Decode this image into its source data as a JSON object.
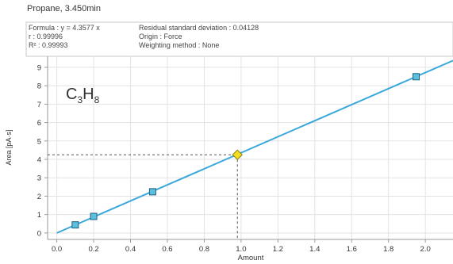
{
  "chart_data": {
    "type": "scatter",
    "title": "Propane, 3.450min",
    "compound_label": {
      "main": "C",
      "sub1": "3",
      "mid": "H",
      "sub2": "8"
    },
    "info": {
      "formula": "Formula : y = 4.3577 x",
      "r": "r : 0.99996",
      "r2": "R² : 0.99993",
      "residual": "Residual standard deviation : 0.04128",
      "origin": "Origin : Force",
      "weighting": "Weighting method : None"
    },
    "xlabel": "Amount",
    "ylabel": "Area [pA·s]",
    "xlim": [
      -0.05,
      2.15
    ],
    "ylim": [
      -0.35,
      9.6
    ],
    "xticks": [
      "0.0",
      "0.2",
      "0.4",
      "0.6",
      "0.8",
      "1.0",
      "1.2",
      "1.4",
      "1.6",
      "1.8",
      "2.0"
    ],
    "xtick_values": [
      0,
      0.2,
      0.4,
      0.6,
      0.8,
      1.0,
      1.2,
      1.4,
      1.6,
      1.8,
      2.0
    ],
    "yticks": [
      "0",
      "1",
      "2",
      "3",
      "4",
      "5",
      "6",
      "7",
      "8",
      "9"
    ],
    "ytick_values": [
      0,
      1,
      2,
      3,
      4,
      5,
      6,
      7,
      8,
      9
    ],
    "slope": 4.3577,
    "calibration_points": [
      {
        "x": 0.1,
        "y": 0.44
      },
      {
        "x": 0.2,
        "y": 0.9
      },
      {
        "x": 0.52,
        "y": 2.24
      },
      {
        "x": 1.95,
        "y": 8.49
      }
    ],
    "sample_point": {
      "x": 0.98,
      "y": 4.25
    },
    "colors": {
      "line": "#3ba8dc",
      "calibration_fill": "#5bc0de",
      "calibration_stroke": "#1f5f80",
      "sample_fill": "#f2e01f",
      "sample_stroke": "#8a7a10",
      "grid": "#e3e3e3",
      "info_border": "#c8c8c8"
    },
    "grid": true
  }
}
